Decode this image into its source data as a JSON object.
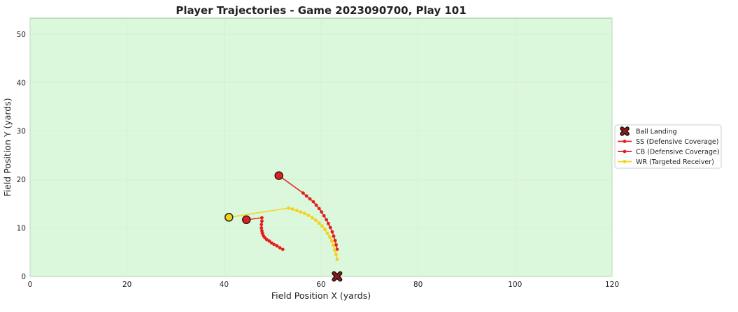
{
  "chart_data": {
    "type": "scatter",
    "title": "Player Trajectories - Game 2023090700, Play 101",
    "xlabel": "Field Position X (yards)",
    "ylabel": "Field Position Y (yards)",
    "xlim": [
      0,
      120
    ],
    "ylim": [
      0,
      53.3
    ],
    "xticks": [
      0,
      20,
      40,
      60,
      80,
      100,
      120
    ],
    "yticks": [
      0,
      10,
      20,
      30,
      40,
      50
    ],
    "grid": true,
    "background_color": "#dbf8dd",
    "legend_position": "right-center",
    "ball_landing": {
      "name": "Ball Landing",
      "x": 63.3,
      "y": 0,
      "color": "#8b1a1a"
    },
    "series": [
      {
        "name": "SS (Defensive Coverage)",
        "color": "#e61c1c",
        "start": [
          51.3,
          20.8
        ],
        "x": [
          56.3,
          57.0,
          57.7,
          58.4,
          59.0,
          59.6,
          60.1,
          60.6,
          61.1,
          61.5,
          61.9,
          62.3,
          62.6,
          62.9,
          63.1,
          63.3
        ],
        "y": [
          17.2,
          16.6,
          16.0,
          15.4,
          14.7,
          14.0,
          13.3,
          12.5,
          11.7,
          10.9,
          10.1,
          9.2,
          8.3,
          7.4,
          6.5,
          5.6
        ]
      },
      {
        "name": "CB (Defensive Coverage)",
        "color": "#e61c1c",
        "start": [
          44.6,
          11.7
        ],
        "x": [
          47.8,
          47.8,
          47.7,
          47.7,
          47.8,
          47.9,
          48.1,
          48.4,
          48.8,
          49.3,
          49.8,
          50.3,
          50.9,
          51.5,
          52.1
        ],
        "y": [
          12.1,
          11.4,
          10.7,
          10.0,
          9.4,
          8.9,
          8.4,
          8.0,
          7.6,
          7.3,
          6.9,
          6.6,
          6.3,
          5.9,
          5.6
        ]
      },
      {
        "name": "WR (Targeted Receiver)",
        "color": "#f5d21a",
        "start": [
          41.0,
          12.2
        ],
        "x": [
          53.3,
          54.1,
          55.0,
          55.8,
          56.6,
          57.4,
          58.2,
          58.9,
          59.6,
          60.2,
          60.8,
          61.3,
          61.8,
          62.2,
          62.5,
          62.8,
          63.1,
          63.3
        ],
        "y": [
          14.1,
          13.9,
          13.6,
          13.3,
          13.0,
          12.6,
          12.1,
          11.6,
          11.0,
          10.4,
          9.7,
          8.9,
          8.1,
          7.3,
          6.4,
          5.4,
          4.5,
          3.5
        ]
      }
    ]
  }
}
